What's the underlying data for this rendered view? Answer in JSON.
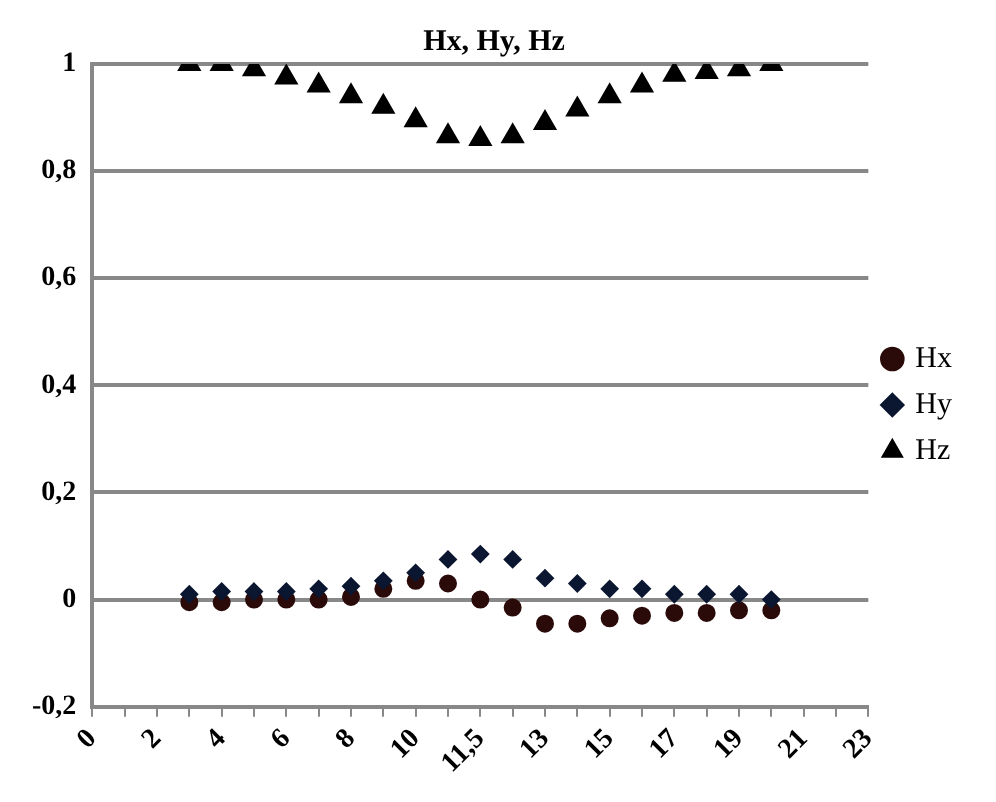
{
  "chart_data": {
    "type": "scatter",
    "title": "Hx, Hy, Hz",
    "categories": [
      "0",
      null,
      "2",
      null,
      "4",
      null,
      "6",
      null,
      "8",
      null,
      "10",
      null,
      "11,5",
      null,
      "13",
      null,
      "15",
      null,
      "17",
      null,
      "19",
      null,
      "21",
      null,
      "23"
    ],
    "series": [
      {
        "name": "Hx",
        "color": "#2b0a0a",
        "marker": "circle",
        "values": [
          null,
          null,
          null,
          -0.005,
          -0.005,
          0,
          0,
          0,
          0.005,
          0.02,
          0.035,
          0.03,
          0,
          -0.015,
          -0.045,
          -0.045,
          -0.035,
          -0.03,
          -0.025,
          -0.025,
          -0.02,
          -0.02,
          null,
          null,
          null
        ]
      },
      {
        "name": "Hy",
        "color": "#0b1630",
        "marker": "diamond",
        "values": [
          null,
          null,
          null,
          0.01,
          0.015,
          0.015,
          0.015,
          0.02,
          0.025,
          0.035,
          0.05,
          0.075,
          0.085,
          0.075,
          0.04,
          0.03,
          0.02,
          0.02,
          0.01,
          0.01,
          0.01,
          0,
          null,
          null,
          null
        ]
      },
      {
        "name": "Hz",
        "color": "#000000",
        "marker": "triangle",
        "values": [
          null,
          null,
          null,
          1,
          1,
          0.99,
          0.975,
          0.96,
          0.94,
          0.92,
          0.895,
          0.865,
          0.86,
          0.865,
          0.89,
          0.915,
          0.94,
          0.96,
          0.98,
          0.985,
          0.99,
          1,
          null,
          null,
          null
        ]
      }
    ],
    "ylim": [
      -0.2,
      1
    ],
    "yticks": [
      {
        "value": -0.2,
        "label": "-0,2"
      },
      0,
      {
        "value": 0.2,
        "label": "0,2"
      },
      {
        "value": 0.4,
        "label": "0,4"
      },
      {
        "value": 0.6,
        "label": "0,6"
      },
      {
        "value": 0.8,
        "label": "0,8"
      },
      1
    ],
    "grid": "y",
    "legend": "right"
  }
}
